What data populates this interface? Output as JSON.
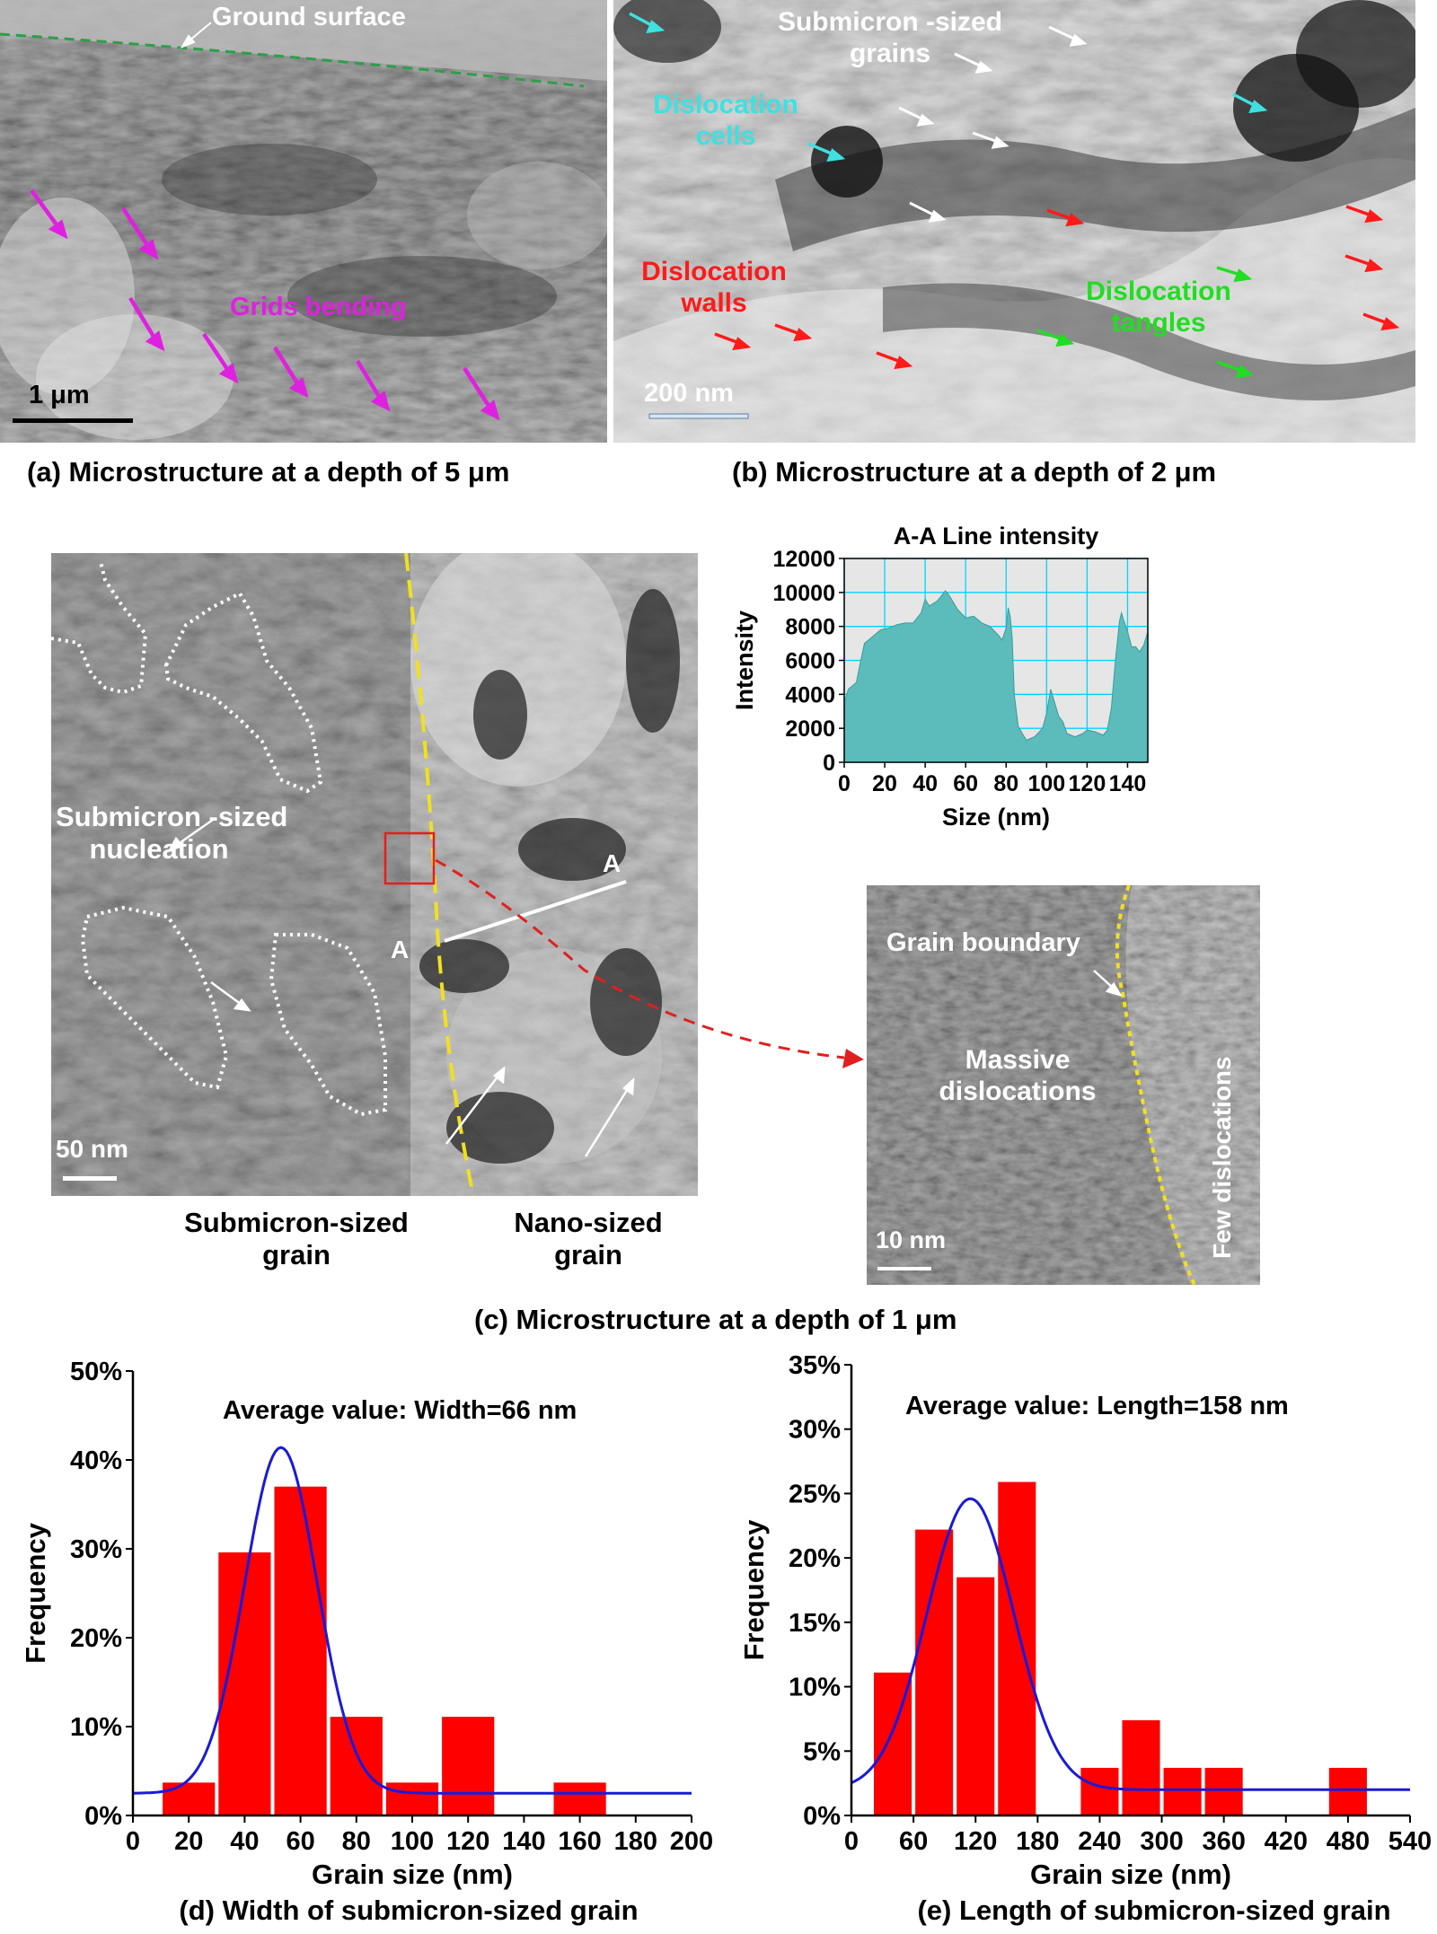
{
  "panel_a": {
    "caption": "(a) Microstructure at a depth of 5 μm",
    "ground_surface": "Ground surface",
    "grids_bending": "Grids bending",
    "scale_bar": "1 μm",
    "colors": {
      "surface_line": "#2e9e4a",
      "arrow": "#e020e0",
      "label": "#e020e0"
    }
  },
  "panel_b": {
    "caption": "(b) Microstructure at a depth of 2 μm",
    "submicron_grains": [
      "Submicron -sized",
      "grains"
    ],
    "dislocation_cells": [
      "Dislocation",
      "cells"
    ],
    "dislocation_walls": [
      "Dislocation",
      "walls"
    ],
    "dislocation_tangles": [
      "Dislocation",
      "tangles"
    ],
    "scale_bar": "200 nm",
    "colors": {
      "cells": "#40e0e0",
      "walls": "#ff1a1a",
      "tangles": "#22dd22",
      "grains": "#ffffff"
    }
  },
  "panel_c": {
    "caption": "(c) Microstructure at a depth of 1 μm",
    "nucleation": [
      "Submicron -sized",
      "nucleation"
    ],
    "label_a_left": "A",
    "label_a_right": "A",
    "scale_bar": "50 nm",
    "submicron_grain": [
      "Submicron-sized",
      "grain"
    ],
    "nano_grain": [
      "Nano-sized",
      "grain"
    ],
    "inset": {
      "grain_boundary": "Grain boundary",
      "massive": [
        "Massive",
        "dislocations"
      ],
      "few": "Few dislocations",
      "scale_bar": "10 nm"
    },
    "colors": {
      "boundary": "#f0e020",
      "box": "#e02020",
      "fill": "#5bbcbb"
    }
  },
  "chart_data": [
    {
      "type": "area",
      "title": "A-A Line intensity",
      "xlabel": "Size (nm)",
      "ylabel": "Intensity",
      "xlim": [
        0,
        150
      ],
      "ylim": [
        0,
        12000
      ],
      "xticks": [
        "0",
        "20",
        "40",
        "60",
        "80",
        "100",
        "120",
        "140"
      ],
      "yticks": [
        "0",
        "2000",
        "4000",
        "6000",
        "8000",
        "10000",
        "12000"
      ],
      "grid": true,
      "x": [
        0,
        2,
        4,
        6,
        8,
        10,
        14,
        18,
        22,
        26,
        30,
        34,
        38,
        40,
        42,
        46,
        50,
        52,
        56,
        60,
        64,
        68,
        72,
        76,
        78,
        80,
        81,
        82,
        83,
        84,
        86,
        88,
        90,
        94,
        98,
        100,
        102,
        104,
        106,
        108,
        110,
        114,
        118,
        120,
        124,
        128,
        130,
        132,
        134,
        136,
        137,
        138,
        140,
        142,
        144,
        146,
        148,
        150
      ],
      "y": [
        3500,
        4300,
        4500,
        4700,
        5900,
        7000,
        7400,
        7800,
        7900,
        8100,
        8200,
        8200,
        8800,
        9600,
        9200,
        9500,
        10100,
        9800,
        9000,
        8500,
        8600,
        8200,
        8000,
        7500,
        7200,
        7900,
        9100,
        8600,
        7300,
        4000,
        2100,
        1700,
        1300,
        1500,
        2000,
        2900,
        4300,
        3500,
        2700,
        2400,
        1700,
        1500,
        1700,
        1900,
        1800,
        1600,
        1900,
        3200,
        6000,
        8300,
        8800,
        8400,
        7700,
        6800,
        6800,
        6500,
        6900,
        7700
      ],
      "colors": {
        "fill": "#5bbcbb",
        "grid": "#00d4ff",
        "bg": "#e6e6e6"
      }
    },
    {
      "type": "bar",
      "title": "Average value: Width=66 nm",
      "xlabel": "Grain size (nm)",
      "ylabel": "Frequency",
      "caption": "(d) Width of submicron-sized grain",
      "xlim": [
        0,
        200
      ],
      "ylim": [
        0,
        50
      ],
      "xticks": [
        "0",
        "20",
        "40",
        "60",
        "80",
        "100",
        "120",
        "140",
        "160",
        "180",
        "200"
      ],
      "yticks": [
        "0%",
        "10%",
        "20%",
        "30%",
        "40%",
        "50%"
      ],
      "bins": [
        [
          10,
          30
        ],
        [
          30,
          50
        ],
        [
          50,
          70
        ],
        [
          70,
          90
        ],
        [
          90,
          110
        ],
        [
          110,
          130
        ],
        [
          150,
          170
        ]
      ],
      "values": [
        3.7,
        29.6,
        37.0,
        11.1,
        3.7,
        11.1,
        3.7
      ],
      "fit_curve": {
        "type": "gaussian",
        "baseline": 2.5,
        "peak": 41.4,
        "center": 53,
        "sigma": 13
      },
      "colors": {
        "bar": "#ff0000",
        "fit": "#1a1ad8"
      }
    },
    {
      "type": "bar",
      "title": "Average value: Length=158 nm",
      "xlabel": "Grain size (nm)",
      "ylabel": "Frequency",
      "caption": "(e) Length of submicron-sized grain",
      "xlim": [
        0,
        540
      ],
      "ylim": [
        0,
        35
      ],
      "xticks": [
        "0",
        "60",
        "120",
        "180",
        "240",
        "300",
        "360",
        "420",
        "480",
        "540"
      ],
      "yticks": [
        "0%",
        "5%",
        "10%",
        "15%",
        "20%",
        "25%",
        "30%",
        "35%"
      ],
      "bins": [
        [
          20,
          60
        ],
        [
          60,
          100
        ],
        [
          100,
          140
        ],
        [
          140,
          180
        ],
        [
          220,
          260
        ],
        [
          260,
          300
        ],
        [
          300,
          340
        ],
        [
          340,
          380
        ],
        [
          460,
          500
        ]
      ],
      "values": [
        11.1,
        22.2,
        18.5,
        25.9,
        3.7,
        7.4,
        3.7,
        3.7,
        3.7
      ],
      "fit_curve": {
        "type": "gaussian",
        "baseline": 2.0,
        "peak": 24.6,
        "center": 115,
        "sigma": 42
      },
      "colors": {
        "bar": "#ff0000",
        "fit": "#1a1ad8"
      }
    }
  ]
}
